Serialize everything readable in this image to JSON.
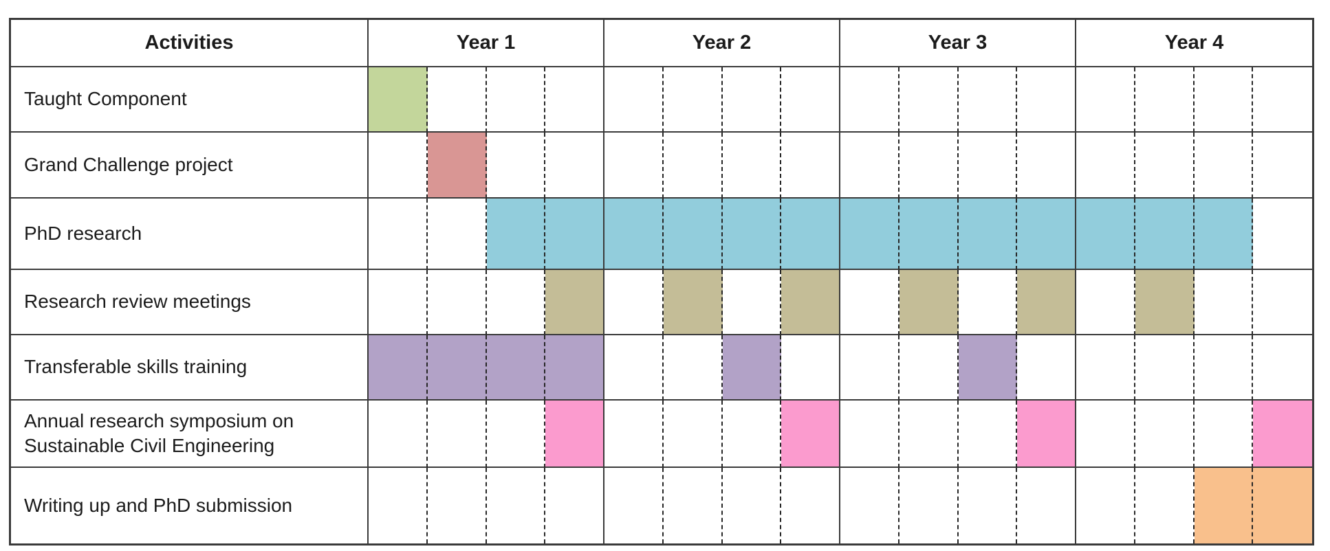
{
  "page": {
    "background": "#ffffff"
  },
  "table": {
    "header": {
      "activities_label": "Activities",
      "years": [
        "Year 1",
        "Year 2",
        "Year 3",
        "Year 4"
      ]
    },
    "style": {
      "solid_line_color": "#3a3a3a",
      "dashed_line_color": "#262626",
      "text_color": "#1b1b1b"
    }
  },
  "chart_data": {
    "type": "table",
    "subtype": "gantt",
    "title": "",
    "columns": [
      "Activities",
      "Year 1",
      "Year 2",
      "Year 3",
      "Year 4"
    ],
    "time_axis": {
      "years": 4,
      "quarters_per_year": 4,
      "total_quarters": 16,
      "quarter_gridlines": "dashed",
      "year_gridlines": "solid"
    },
    "rows": [
      {
        "label": "Taught Component",
        "color": "#c3d69b",
        "filled_quarters": [
          1
        ]
      },
      {
        "label": "Grand Challenge project",
        "color": "#d99694",
        "filled_quarters": [
          2
        ]
      },
      {
        "label": "PhD research",
        "color": "#92cddc",
        "filled_quarters": [
          3,
          4,
          5,
          6,
          7,
          8,
          9,
          10,
          11,
          12,
          13,
          14,
          15
        ]
      },
      {
        "label": "Research review meetings",
        "color": "#c4bd97",
        "filled_quarters": [
          4,
          6,
          8,
          10,
          12,
          14
        ]
      },
      {
        "label": "Transferable skills training",
        "color": "#b2a2c7",
        "filled_quarters": [
          1,
          2,
          3,
          4,
          7,
          11
        ]
      },
      {
        "label": "Annual research symposium on Sustainable Civil Engineering",
        "color": "#fb9bce",
        "filled_quarters": [
          4,
          8,
          12,
          16
        ]
      },
      {
        "label": "Writing up and PhD submission",
        "color": "#f9c08c",
        "filled_quarters": [
          15,
          16
        ]
      }
    ]
  }
}
